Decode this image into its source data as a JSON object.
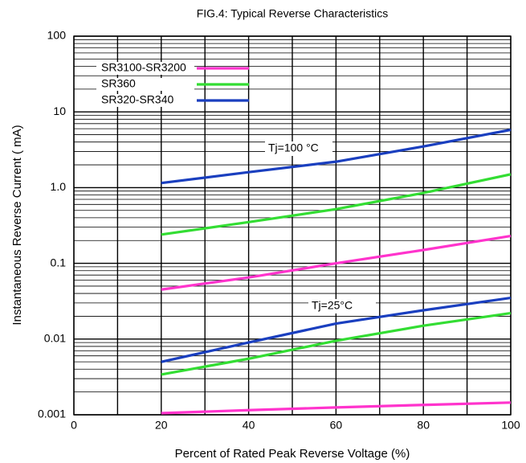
{
  "chart_data": {
    "type": "line",
    "title": "FIG.4: Typical Reverse Characteristics",
    "xlabel": "Percent of Rated Peak Reverse Voltage (%)",
    "ylabel": "Instantaneous Reverse Current (    mA)",
    "x": [
      20,
      40,
      60,
      80,
      100
    ],
    "xlim": [
      0,
      100
    ],
    "xticks": [
      0,
      20,
      40,
      60,
      80,
      100
    ],
    "ylim": [
      0.001,
      100
    ],
    "yticks": [
      0.001,
      0.01,
      0.1,
      {
        "value": 1,
        "label": "1.0"
      },
      10,
      100
    ],
    "log_y": true,
    "grid": true,
    "legend": "upper left",
    "annotations": [
      "Tj=100 °C",
      "Tj=25°C"
    ],
    "series": [
      {
        "name": "SR3100-SR3200",
        "color": "#ff33cc",
        "values": [
          0.045,
          0.065,
          0.1,
          0.15,
          0.23
        ],
        "values_tj25": [
          0.00105,
          0.00115,
          0.00125,
          0.00135,
          0.00145
        ]
      },
      {
        "name": "SR360",
        "color": "#33dd33",
        "values": [
          0.24,
          0.35,
          0.52,
          0.85,
          1.5
        ],
        "values_tj25": [
          0.0034,
          0.0055,
          0.0095,
          0.015,
          0.022
        ]
      },
      {
        "name": "SR320-SR340",
        "color": "#1a3fbf",
        "values": [
          1.15,
          1.6,
          2.2,
          3.5,
          5.8
        ],
        "values_tj25": [
          0.005,
          0.009,
          0.016,
          0.024,
          0.035
        ]
      }
    ]
  }
}
